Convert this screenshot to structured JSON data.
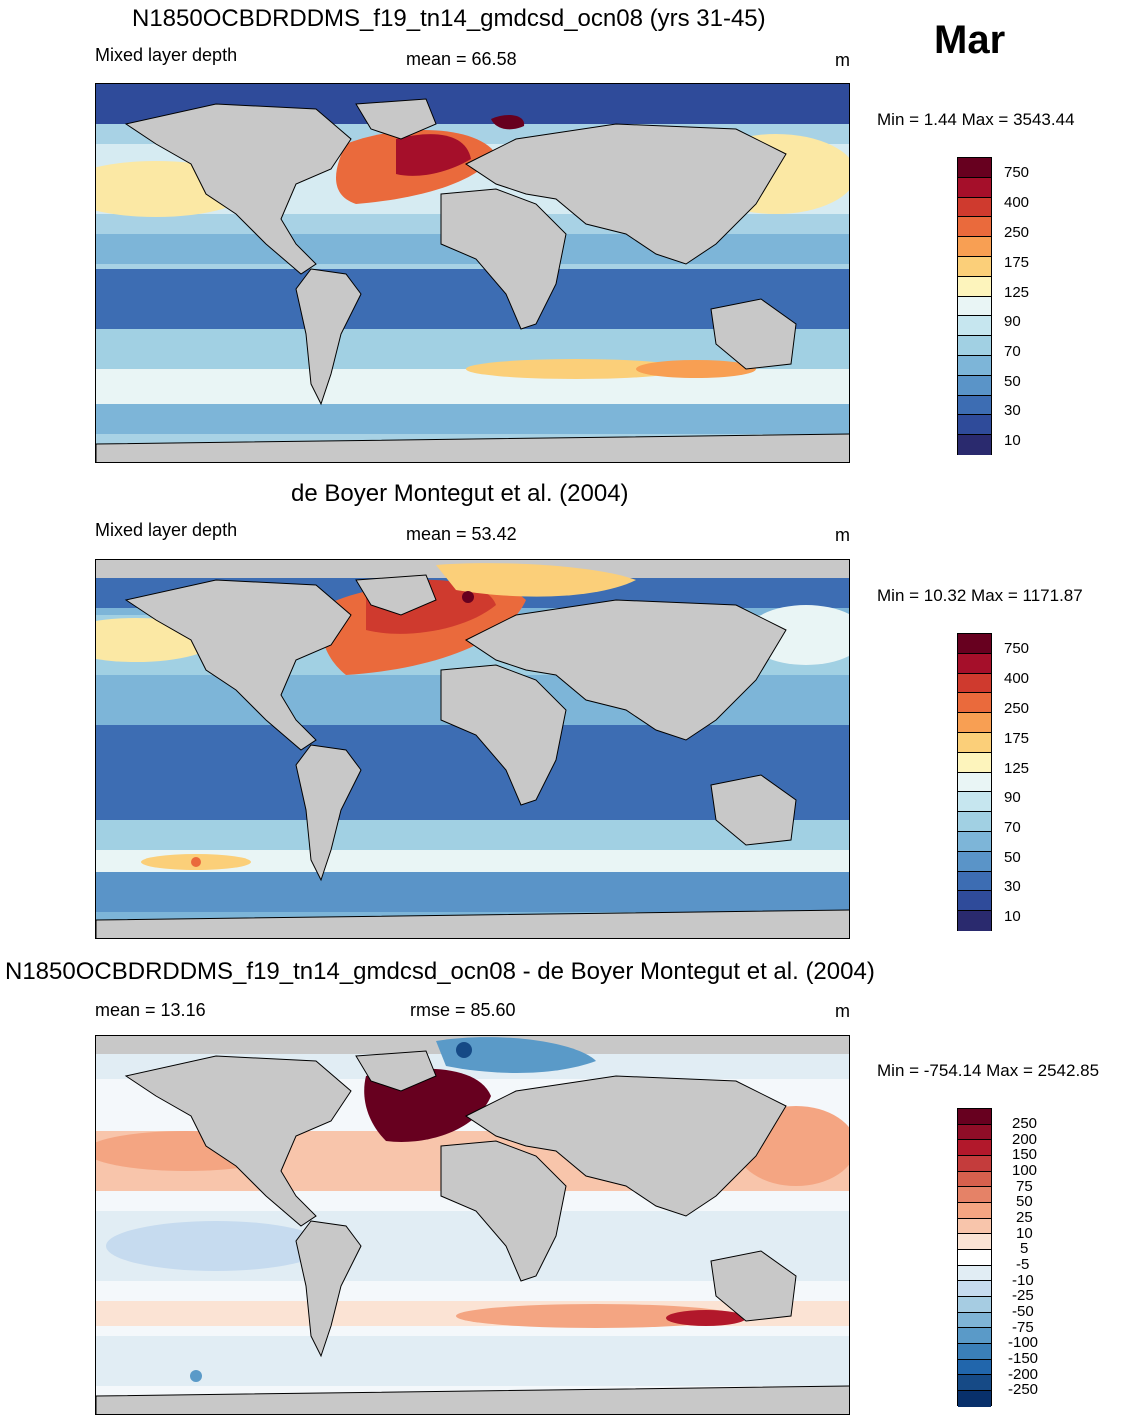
{
  "month": "Mar",
  "units": "m",
  "panels": [
    {
      "title": "N1850OCBDRDDMS_f19_tn14_gmdcsd_ocn08 (yrs 31-45)",
      "left_label": "Mixed layer depth",
      "center_label": "mean =  66.58",
      "units": "m",
      "min_max": "Min =    1.44 Max = 3543.44"
    },
    {
      "title": "de Boyer Montegut et al. (2004)",
      "left_label": "Mixed layer depth",
      "center_label": "mean =  53.42",
      "units": "m",
      "min_max": "Min =  10.32 Max = 1171.87"
    },
    {
      "title": "N1850OCBDRDDMS_f19_tn14_gmdcsd_ocn08 - de Boyer Montegut et al. (2004)",
      "left_label": "mean =  13.16",
      "center_label": "rmse =  85.60",
      "units": "m",
      "min_max": "Min = -754.14 Max = 2542.85"
    }
  ],
  "colorbar_depth": {
    "labels": [
      "750",
      "400",
      "250",
      "175",
      "125",
      "90",
      "70",
      "50",
      "30",
      "10"
    ],
    "colors": [
      "#67001f",
      "#a50f2a",
      "#cf3a2e",
      "#ea6a3c",
      "#f89f53",
      "#fbcf79",
      "#fdf4bc",
      "#e9f5f5",
      "#c6e6ef",
      "#a1d0e3",
      "#7db5d8",
      "#5a94c8",
      "#3d6db3",
      "#2f4b9a",
      "#2a2a6e"
    ]
  },
  "colorbar_diff": {
    "labels": [
      "250",
      "200",
      "150",
      "100",
      "75",
      "50",
      "25",
      "10",
      "5",
      "-5",
      "-10",
      "-25",
      "-50",
      "-75",
      "-100",
      "-150",
      "-200",
      "-250"
    ],
    "colors": [
      "#67001f",
      "#8f0d27",
      "#b2182b",
      "#c43c3c",
      "#d6604d",
      "#e58267",
      "#f4a582",
      "#f8c5ab",
      "#fbe3d4",
      "#ffffff",
      "#e1edf4",
      "#c6dbef",
      "#a6cce2",
      "#7fb4d6",
      "#5a9ac8",
      "#3a7fb8",
      "#2166ac",
      "#164a86",
      "#08306b"
    ]
  }
}
